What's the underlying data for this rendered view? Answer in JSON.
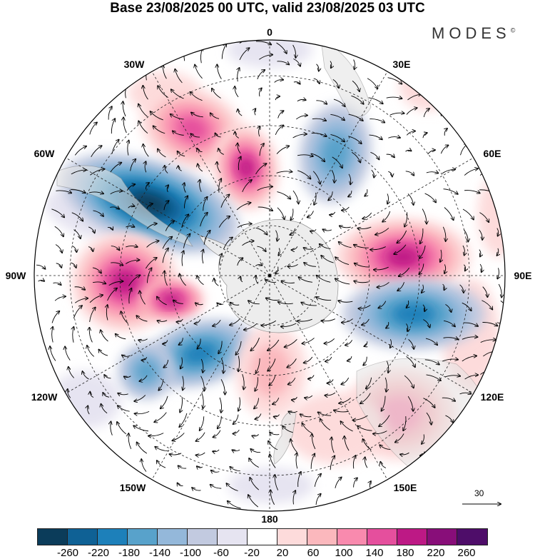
{
  "title": "Base 23/08/2025 00 UTC, valid 23/08/2025 03 UTC",
  "logo": {
    "text": "MODES",
    "mark": "©"
  },
  "map": {
    "projection": "south-polar-stereographic",
    "longitude_labels": [
      {
        "id": "lon-0",
        "text": "0"
      },
      {
        "id": "lon-30e",
        "text": "30E"
      },
      {
        "id": "lon-60e",
        "text": "60E"
      },
      {
        "id": "lon-90e",
        "text": "90E"
      },
      {
        "id": "lon-120e",
        "text": "120E"
      },
      {
        "id": "lon-150e",
        "text": "150E"
      },
      {
        "id": "lon-180",
        "text": "180"
      },
      {
        "id": "lon-150w",
        "text": "150W"
      },
      {
        "id": "lon-120w",
        "text": "120W"
      },
      {
        "id": "lon-90w",
        "text": "90W"
      },
      {
        "id": "lon-60w",
        "text": "60W"
      },
      {
        "id": "lon-30w",
        "text": "30W"
      }
    ],
    "reference_vector": {
      "value": "30"
    }
  },
  "colorbar": {
    "colors": [
      "#0b3c5a",
      "#0f6195",
      "#1d80ba",
      "#58a2cb",
      "#94b8da",
      "#c2cae0",
      "#e6e4f1",
      "#ffffff",
      "#fddbdb",
      "#fbb8bd",
      "#f98aae",
      "#e54f9d",
      "#bd1985",
      "#880e79",
      "#4e0d69"
    ],
    "ticks": [
      "-260",
      "-220",
      "-180",
      "-140",
      "-100",
      "-60",
      "-20",
      "20",
      "60",
      "100",
      "140",
      "180",
      "220",
      "260"
    ]
  }
}
